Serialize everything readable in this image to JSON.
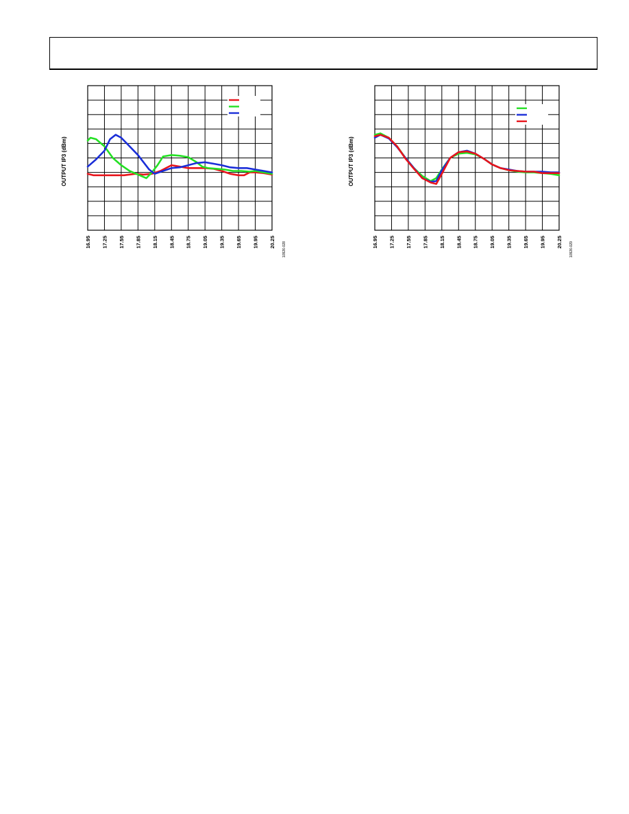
{
  "colors": {
    "red": "#e8141b",
    "green": "#23e023",
    "blue": "#1a2ed8",
    "grid": "#000000"
  },
  "chart_data": [
    {
      "type": "line",
      "ylabel": "OUTPUT IP3 (dBm)",
      "xlabel": "",
      "figure_id": "10926-028",
      "x_ticks": [
        "16.95",
        "17.25",
        "17.55",
        "17.85",
        "18.15",
        "18.45",
        "18.75",
        "19.05",
        "19.35",
        "19.65",
        "19.95",
        "20.25"
      ],
      "xlim": [
        16.95,
        20.25
      ],
      "ylim": [
        0,
        10
      ],
      "grid": true,
      "legend_placement": "top-right",
      "series": [
        {
          "color": "red",
          "x": [
            16.95,
            17.05,
            17.25,
            17.45,
            17.6,
            17.8,
            17.95,
            18.1,
            18.25,
            18.45,
            18.6,
            18.75,
            18.9,
            19.05,
            19.2,
            19.35,
            19.5,
            19.65,
            19.75,
            19.85,
            19.95,
            20.1,
            20.25
          ],
          "y": [
            3.9,
            3.8,
            3.8,
            3.8,
            3.8,
            3.9,
            3.85,
            3.9,
            4.1,
            4.5,
            4.4,
            4.3,
            4.3,
            4.3,
            4.25,
            4.1,
            3.9,
            3.8,
            3.8,
            4.0,
            4.0,
            3.95,
            3.85
          ]
        },
        {
          "color": "green",
          "x": [
            16.95,
            17.0,
            17.1,
            17.25,
            17.4,
            17.55,
            17.7,
            17.85,
            18.0,
            18.1,
            18.2,
            18.3,
            18.45,
            18.6,
            18.75,
            18.9,
            19.0,
            19.1,
            19.25,
            19.4,
            19.55,
            19.7,
            19.85,
            19.95,
            20.1,
            20.25
          ],
          "y": [
            6.2,
            6.4,
            6.3,
            5.8,
            5.0,
            4.5,
            4.1,
            3.85,
            3.6,
            4.0,
            4.5,
            5.1,
            5.2,
            5.15,
            5.05,
            4.7,
            4.4,
            4.3,
            4.25,
            4.2,
            4.1,
            4.1,
            4.05,
            4.1,
            4.0,
            3.9
          ]
        },
        {
          "color": "blue",
          "x": [
            16.95,
            17.1,
            17.25,
            17.35,
            17.45,
            17.55,
            17.65,
            17.75,
            17.85,
            17.95,
            18.05,
            18.15,
            18.3,
            18.45,
            18.6,
            18.75,
            18.9,
            19.05,
            19.2,
            19.35,
            19.5,
            19.65,
            19.8,
            19.95,
            20.1,
            20.25
          ],
          "y": [
            4.4,
            4.9,
            5.5,
            6.3,
            6.6,
            6.4,
            6.0,
            5.6,
            5.2,
            4.7,
            4.2,
            3.9,
            4.1,
            4.3,
            4.35,
            4.5,
            4.65,
            4.7,
            4.6,
            4.5,
            4.35,
            4.3,
            4.3,
            4.2,
            4.1,
            4.0
          ]
        }
      ]
    },
    {
      "type": "line",
      "ylabel": "OUTPUT IP3 (dBm)",
      "xlabel": "",
      "figure_id": "10926-029",
      "x_ticks": [
        "16.95",
        "17.25",
        "17.55",
        "17.85",
        "18.15",
        "18.45",
        "18.75",
        "19.05",
        "19.35",
        "19.65",
        "19.95",
        "20.25"
      ],
      "xlim": [
        16.95,
        20.25
      ],
      "ylim": [
        0,
        10
      ],
      "grid": true,
      "legend_placement": "top-right",
      "series": [
        {
          "color": "green",
          "x": [
            16.95,
            17.05,
            17.2,
            17.35,
            17.5,
            17.65,
            17.8,
            17.95,
            18.05,
            18.15,
            18.3,
            18.45,
            18.6,
            18.75,
            18.9,
            19.05,
            19.2,
            19.35,
            19.5,
            19.65,
            19.8,
            19.95,
            20.1,
            20.25
          ],
          "y": [
            6.6,
            6.7,
            6.4,
            5.8,
            5.0,
            4.3,
            3.75,
            3.4,
            3.6,
            4.2,
            5.0,
            5.3,
            5.35,
            5.25,
            4.95,
            4.55,
            4.3,
            4.15,
            4.05,
            4.0,
            4.0,
            3.95,
            3.9,
            3.8
          ]
        },
        {
          "color": "blue",
          "x": [
            16.95,
            17.05,
            17.2,
            17.35,
            17.5,
            17.65,
            17.8,
            17.95,
            18.05,
            18.15,
            18.3,
            18.45,
            18.6,
            18.75,
            18.9,
            19.05,
            19.2,
            19.35,
            19.5,
            19.65,
            19.8,
            19.95,
            20.1,
            20.25
          ],
          "y": [
            6.4,
            6.6,
            6.35,
            5.75,
            5.0,
            4.3,
            3.6,
            3.35,
            3.4,
            4.15,
            5.0,
            5.4,
            5.5,
            5.3,
            4.95,
            4.55,
            4.3,
            4.2,
            4.1,
            4.05,
            4.05,
            4.05,
            4.0,
            4.0
          ]
        },
        {
          "color": "red",
          "x": [
            16.95,
            17.05,
            17.2,
            17.35,
            17.5,
            17.65,
            17.8,
            17.95,
            18.05,
            18.15,
            18.3,
            18.45,
            18.6,
            18.75,
            18.9,
            19.05,
            19.2,
            19.35,
            19.5,
            19.65,
            19.8,
            19.95,
            20.1,
            20.25
          ],
          "y": [
            6.5,
            6.6,
            6.4,
            5.8,
            4.95,
            4.25,
            3.6,
            3.3,
            3.2,
            3.9,
            5.0,
            5.4,
            5.45,
            5.3,
            4.95,
            4.55,
            4.3,
            4.15,
            4.1,
            4.05,
            4.05,
            3.95,
            3.95,
            3.95
          ]
        }
      ]
    }
  ]
}
